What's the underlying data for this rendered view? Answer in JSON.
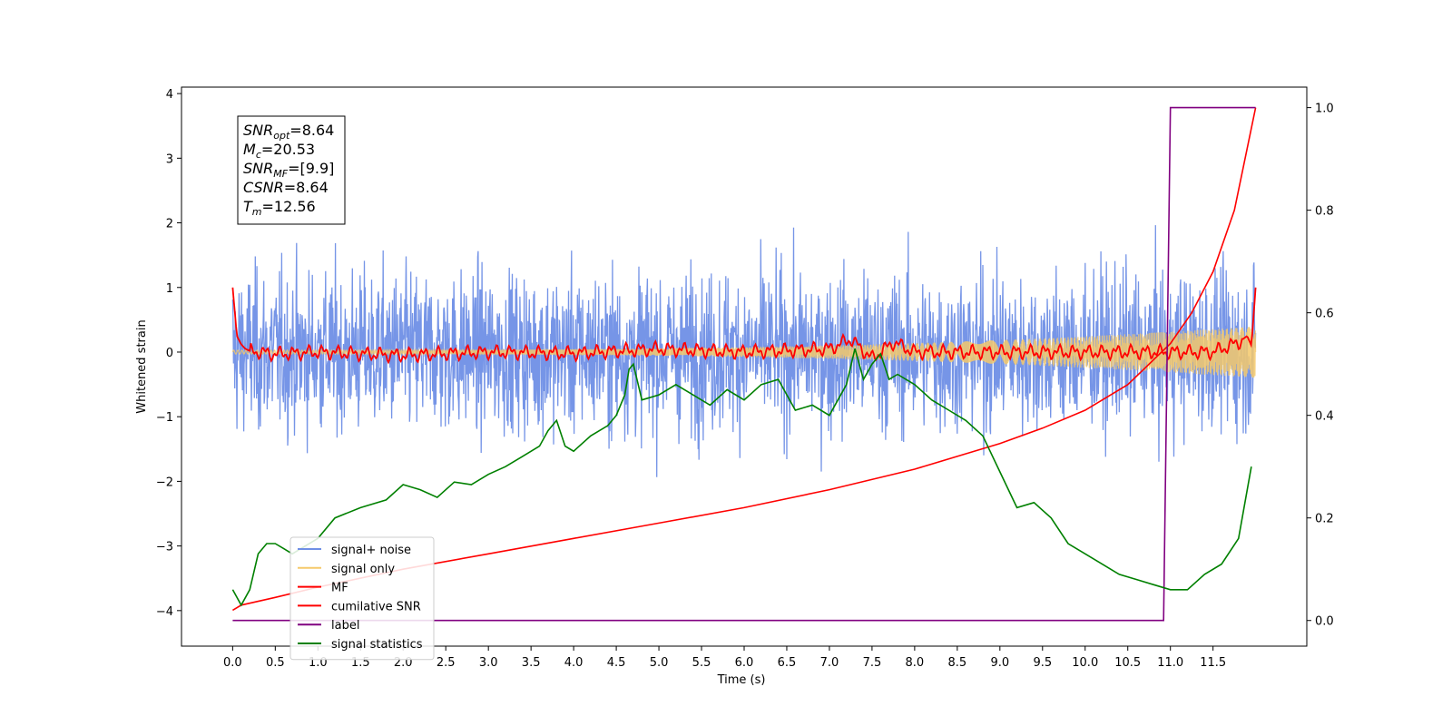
{
  "chart_data": {
    "type": "line",
    "xlabel": "Time (s)",
    "ylabel": "Whitened strain",
    "xlim": [
      -0.6,
      12.6
    ],
    "ylim": [
      -4.55,
      4.1
    ],
    "y2lim": [
      -0.05,
      1.04
    ],
    "xticks": [
      "0.0",
      "0.5",
      "1.0",
      "1.5",
      "2.0",
      "2.5",
      "3.0",
      "3.5",
      "4.0",
      "4.5",
      "5.0",
      "5.5",
      "6.0",
      "6.5",
      "7.0",
      "7.5",
      "8.0",
      "8.5",
      "9.0",
      "9.5",
      "10.0",
      "10.5",
      "11.0",
      "11.5"
    ],
    "xtick_values": [
      0,
      0.5,
      1,
      1.5,
      2,
      2.5,
      3,
      3.5,
      4,
      4.5,
      5,
      5.5,
      6,
      6.5,
      7,
      7.5,
      8,
      8.5,
      9,
      9.5,
      10,
      10.5,
      11,
      11.5
    ],
    "yticks": [
      "4",
      "3",
      "2",
      "1",
      "0",
      "−1",
      "−2",
      "−3",
      "−4"
    ],
    "ytick_values": [
      4,
      3,
      2,
      1,
      0,
      -1,
      -2,
      -3,
      -4
    ],
    "y2ticks": [
      "1.0",
      "0.8",
      "0.6",
      "0.4",
      "0.2",
      "0.0"
    ],
    "y2tick_values": [
      1,
      0.8,
      0.6,
      0.4,
      0.2,
      0
    ],
    "grid": false,
    "legend_position": "bottom-left",
    "series": [
      {
        "name": "signal+ noise",
        "color": "#6f8fe6",
        "axis": "left",
        "style": "noise",
        "amplitude": 1.2,
        "range": [
          0,
          12
        ]
      },
      {
        "name": "signal only",
        "color": "#f5c96b",
        "axis": "left",
        "style": "chirp",
        "amplitude_start": 0.03,
        "amplitude_end": 0.4,
        "range": [
          0,
          12
        ]
      },
      {
        "name": "MF",
        "color": "#ff0000",
        "axis": "left",
        "x": [
          0,
          0.05,
          0.1,
          0.15,
          0.2,
          0.3,
          0.5,
          1,
          2,
          3,
          4,
          5,
          6,
          7,
          7.25,
          7.5,
          7.75,
          8,
          9,
          10,
          11,
          11.5,
          11.8,
          11.9,
          11.95,
          12
        ],
        "y": [
          1.0,
          0.25,
          0.12,
          0.05,
          0.02,
          0.0,
          -0.03,
          0.0,
          -0.05,
          0.0,
          -0.02,
          0.05,
          0.0,
          0.05,
          0.2,
          -0.1,
          0.15,
          0.0,
          0.0,
          0.0,
          0.0,
          0.0,
          0.15,
          0.25,
          0.1,
          1.0
        ]
      },
      {
        "name": "cumilative SNR",
        "color": "#ff0000",
        "axis": "right",
        "x": [
          0,
          0.1,
          0.5,
          1,
          2,
          3,
          4,
          5,
          6,
          7,
          8,
          8.5,
          9,
          9.5,
          10,
          10.5,
          11,
          11.25,
          11.5,
          11.75,
          12
        ],
        "y": [
          0.02,
          0.03,
          0.045,
          0.065,
          0.1,
          0.13,
          0.16,
          0.19,
          0.22,
          0.255,
          0.295,
          0.32,
          0.345,
          0.375,
          0.41,
          0.46,
          0.54,
          0.6,
          0.68,
          0.8,
          1.0
        ]
      },
      {
        "name": "label",
        "color": "#800080",
        "axis": "right",
        "x": [
          0,
          10.92,
          11.0,
          12
        ],
        "y": [
          0,
          0,
          1,
          1
        ]
      },
      {
        "name": "signal statistics",
        "color": "#008000",
        "axis": "right",
        "x": [
          0,
          0.1,
          0.2,
          0.3,
          0.4,
          0.5,
          0.6,
          0.7,
          0.8,
          1.0,
          1.2,
          1.5,
          1.8,
          2.0,
          2.2,
          2.4,
          2.6,
          2.8,
          3.0,
          3.2,
          3.4,
          3.6,
          3.7,
          3.8,
          3.9,
          4.0,
          4.2,
          4.4,
          4.5,
          4.6,
          4.65,
          4.7,
          4.8,
          5.0,
          5.2,
          5.4,
          5.6,
          5.8,
          6.0,
          6.2,
          6.4,
          6.6,
          6.8,
          7.0,
          7.2,
          7.3,
          7.4,
          7.5,
          7.6,
          7.7,
          7.8,
          8.0,
          8.2,
          8.4,
          8.6,
          8.8,
          9.0,
          9.2,
          9.4,
          9.6,
          9.8,
          10.0,
          10.2,
          10.4,
          10.6,
          10.8,
          11.0,
          11.2,
          11.4,
          11.6,
          11.8,
          11.95
        ],
        "y": [
          0.06,
          0.03,
          0.06,
          0.13,
          0.15,
          0.15,
          0.14,
          0.13,
          0.14,
          0.16,
          0.2,
          0.22,
          0.235,
          0.265,
          0.255,
          0.24,
          0.27,
          0.265,
          0.285,
          0.3,
          0.32,
          0.34,
          0.37,
          0.39,
          0.34,
          0.33,
          0.36,
          0.38,
          0.4,
          0.44,
          0.49,
          0.5,
          0.43,
          0.44,
          0.46,
          0.44,
          0.42,
          0.45,
          0.43,
          0.46,
          0.47,
          0.41,
          0.42,
          0.4,
          0.46,
          0.53,
          0.47,
          0.5,
          0.52,
          0.47,
          0.48,
          0.46,
          0.43,
          0.41,
          0.39,
          0.36,
          0.29,
          0.22,
          0.23,
          0.2,
          0.15,
          0.13,
          0.11,
          0.09,
          0.08,
          0.07,
          0.06,
          0.06,
          0.09,
          0.11,
          0.16,
          0.3
        ]
      }
    ],
    "annotations": [
      {
        "var": "SNR",
        "sub": "opt",
        "value": "=8.64"
      },
      {
        "var": "M",
        "sub": "c",
        "value": "=20.53"
      },
      {
        "var": "SNR",
        "sub": "MF",
        "value": "=[9.9]"
      },
      {
        "var": "CSNR",
        "sub": "",
        "value": "=8.64"
      },
      {
        "var": "T",
        "sub": "m",
        "value": "=12.56"
      }
    ]
  }
}
